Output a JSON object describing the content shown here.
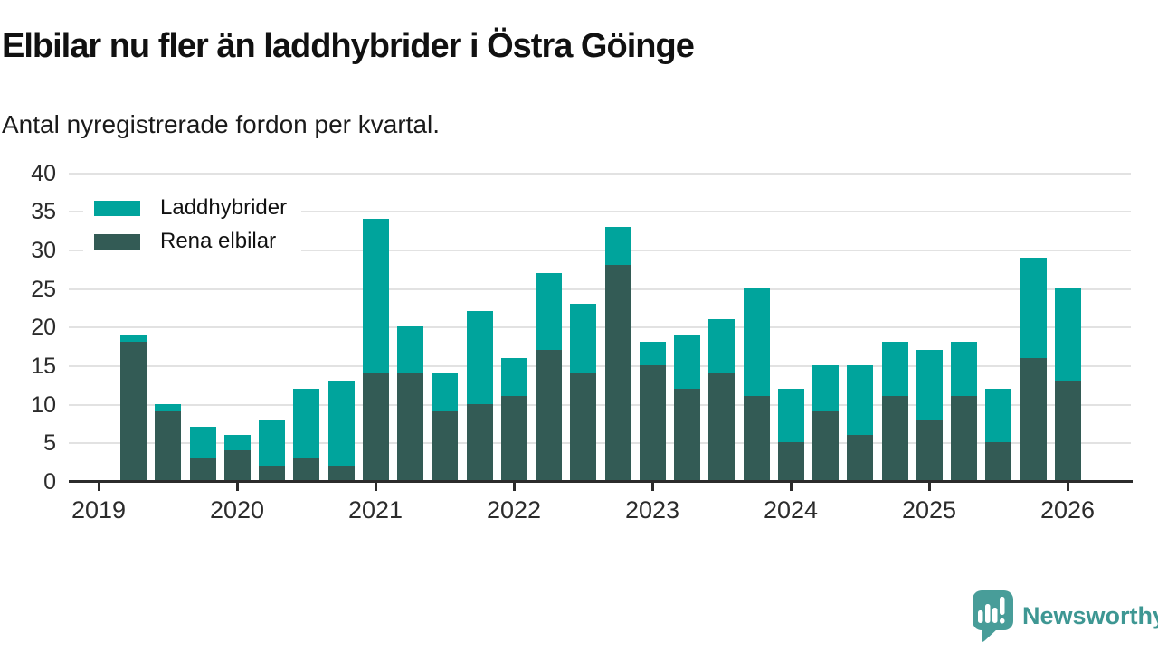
{
  "header": {
    "title": "Elbilar nu fler än laddhybrider i Östra Göinge",
    "subtitle": "Antal nyregistrerade fordon per kvartal."
  },
  "legend": {
    "items": [
      {
        "label": "Laddhybrider",
        "color": "#00a49c"
      },
      {
        "label": "Rena elbilar",
        "color": "#335b55"
      }
    ]
  },
  "footer": {
    "brand": "Newsworthy",
    "brand_color": "#3e9793",
    "logo_icon": "newsworthy-speech-bubble-bar-chart-icon",
    "logo_bubble_color": "#489d99"
  },
  "chart_data": {
    "type": "bar",
    "stacked": true,
    "title": "Elbilar nu fler än laddhybrider i Östra Göinge",
    "subtitle": "Antal nyregistrerade fordon per kvartal.",
    "xlabel": "",
    "ylabel": "",
    "ylim": [
      0,
      40
    ],
    "y_ticks": [
      0,
      5,
      10,
      15,
      20,
      25,
      30,
      35,
      40
    ],
    "grid": "horizontal",
    "legend_position": "top-left",
    "x_tick_labels": [
      "2019",
      "2020",
      "2021",
      "2022",
      "2023",
      "2024",
      "2025",
      "2026"
    ],
    "categories": [
      "2019-Q2",
      "2019-Q3",
      "2019-Q4",
      "2020-Q1",
      "2020-Q2",
      "2020-Q3",
      "2020-Q4",
      "2021-Q1",
      "2021-Q2",
      "2021-Q3",
      "2021-Q4",
      "2022-Q1",
      "2022-Q2",
      "2022-Q3",
      "2022-Q4",
      "2023-Q1",
      "2023-Q2",
      "2023-Q3",
      "2023-Q4",
      "2024-Q1",
      "2024-Q2",
      "2024-Q3",
      "2024-Q4",
      "2025-Q1",
      "2025-Q2",
      "2025-Q3",
      "2025-Q4",
      "2026-Q1"
    ],
    "series": [
      {
        "name": "Rena elbilar",
        "color": "#335b55",
        "stack_order": "bottom",
        "values": [
          18,
          9,
          3,
          4,
          2,
          3,
          2,
          14,
          14,
          9,
          10,
          11,
          17,
          14,
          28,
          15,
          12,
          14,
          11,
          5,
          9,
          6,
          11,
          8,
          11,
          5,
          16,
          13
        ]
      },
      {
        "name": "Laddhybrider",
        "color": "#00a49c",
        "stack_order": "top",
        "values": [
          1,
          1,
          4,
          2,
          6,
          9,
          11,
          20,
          6,
          5,
          12,
          5,
          10,
          9,
          5,
          3,
          7,
          7,
          14,
          7,
          6,
          9,
          7,
          9,
          7,
          7,
          13,
          12
        ]
      }
    ],
    "totals": [
      19,
      10,
      7,
      6,
      8,
      12,
      13,
      34,
      20,
      14,
      22,
      16,
      27,
      23,
      33,
      18,
      19,
      21,
      25,
      12,
      15,
      15,
      18,
      17,
      18,
      12,
      29,
      25
    ]
  }
}
